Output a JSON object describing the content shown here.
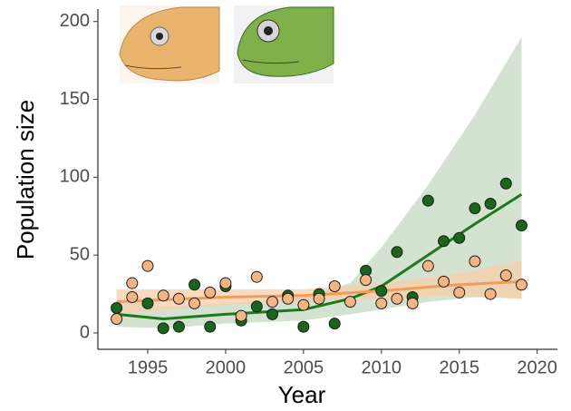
{
  "chart_data": {
    "type": "scatter",
    "x_label": "Year",
    "y_label": "Population size",
    "xlim": [
      1991.8,
      2021.3
    ],
    "ylim": [
      -10.5,
      208
    ],
    "xticks": [
      1995,
      2000,
      2005,
      2010,
      2015,
      2020
    ],
    "yticks": [
      0,
      50,
      100,
      150,
      200
    ],
    "series": [
      {
        "color": "#17661a",
        "line_color": "#1b7a1b",
        "band_color": "#c5d9c1",
        "x": [
          1993,
          1995,
          1996,
          1997,
          1998,
          1999,
          2000,
          2001,
          2002,
          2003,
          2004,
          2005,
          2006,
          2007,
          2009,
          2010,
          2011,
          2012,
          2013,
          2014,
          2015,
          2016,
          2017,
          2018,
          2019
        ],
        "values": [
          16,
          19,
          3,
          4,
          31,
          4,
          30,
          8,
          17,
          12,
          24,
          4,
          25,
          6,
          40,
          27,
          52,
          23,
          85,
          59,
          61,
          80,
          83,
          96,
          69
        ],
        "trend": {
          "x": [
            1993,
            1996,
            2000,
            2005,
            2008,
            2010,
            2013,
            2016,
            2019
          ],
          "values": [
            12,
            9,
            12,
            15,
            22,
            30,
            50,
            70,
            89
          ],
          "lower": [
            4,
            3,
            6,
            8,
            12,
            15,
            20,
            23,
            22
          ],
          "upper": [
            21,
            17,
            19,
            23,
            32,
            55,
            95,
            140,
            190
          ]
        }
      },
      {
        "color": "#f5b583",
        "line_color": "#f29c5c",
        "band_color": "#f8cfaa",
        "x": [
          1993,
          1994,
          1994,
          1995,
          1996,
          1997,
          1998,
          1999,
          2000,
          2001,
          2002,
          2003,
          2004,
          2005,
          2006,
          2007,
          2008,
          2009,
          2010,
          2011,
          2012,
          2013,
          2014,
          2015,
          2016,
          2017,
          2018,
          2019
        ],
        "values": [
          9,
          32,
          23,
          43,
          24,
          22,
          19,
          26,
          32,
          11,
          36,
          20,
          22,
          18,
          22,
          30,
          20,
          34,
          19,
          22,
          19,
          43,
          33,
          26,
          46,
          25,
          37,
          31
        ],
        "trend": {
          "x": [
            1993,
            2000,
            2005,
            2010,
            2015,
            2019
          ],
          "values": [
            20,
            23,
            24,
            27,
            31,
            33
          ],
          "lower": [
            12,
            18,
            20,
            22,
            24,
            22
          ],
          "upper": [
            28,
            28,
            28,
            32,
            38,
            47
          ]
        }
      }
    ]
  }
}
